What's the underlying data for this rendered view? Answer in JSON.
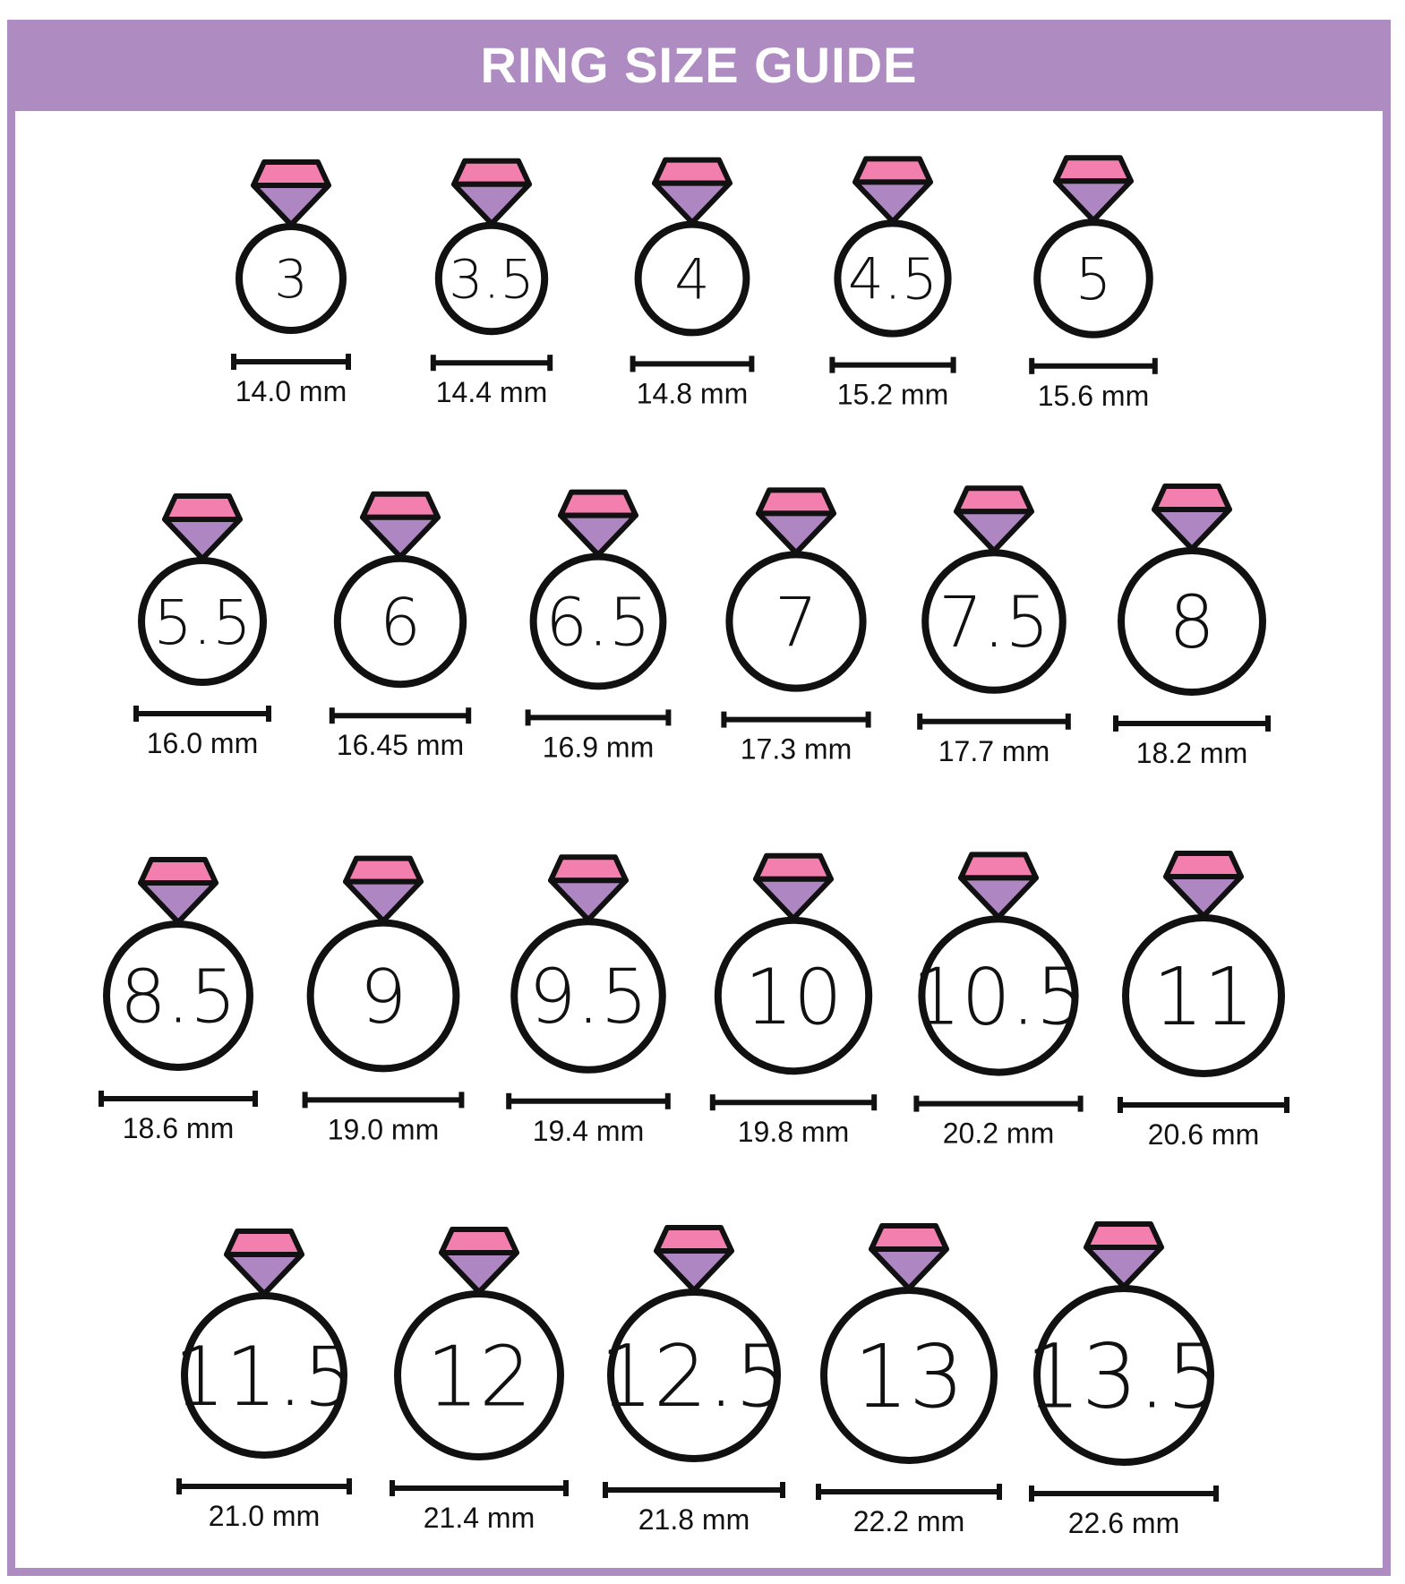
{
  "header": {
    "title": "RING SIZE GUIDE"
  },
  "colors": {
    "accent": "#ae8bc1",
    "gem_top": "#f27fae",
    "gem_bottom": "#ae86c2",
    "outline": "#111111"
  },
  "rings": [
    [
      {
        "size": "3",
        "mm": "14.0 mm"
      },
      {
        "size": "3.5",
        "mm": "14.4 mm"
      },
      {
        "size": "4",
        "mm": "14.8 mm"
      },
      {
        "size": "4.5",
        "mm": "15.2 mm"
      },
      {
        "size": "5",
        "mm": "15.6 mm"
      }
    ],
    [
      {
        "size": "5.5",
        "mm": "16.0 mm"
      },
      {
        "size": "6",
        "mm": "16.45 mm"
      },
      {
        "size": "6.5",
        "mm": "16.9 mm"
      },
      {
        "size": "7",
        "mm": "17.3 mm"
      },
      {
        "size": "7.5",
        "mm": "17.7 mm"
      },
      {
        "size": "8",
        "mm": "18.2 mm"
      }
    ],
    [
      {
        "size": "8.5",
        "mm": "18.6 mm"
      },
      {
        "size": "9",
        "mm": "19.0 mm"
      },
      {
        "size": "9.5",
        "mm": "19.4 mm"
      },
      {
        "size": "10",
        "mm": "19.8 mm"
      },
      {
        "size": "10.5",
        "mm": "20.2 mm"
      },
      {
        "size": "11",
        "mm": "20.6 mm"
      }
    ],
    [
      {
        "size": "11.5",
        "mm": "21.0 mm"
      },
      {
        "size": "12",
        "mm": "21.4 mm"
      },
      {
        "size": "12.5",
        "mm": "21.8 mm"
      },
      {
        "size": "13",
        "mm": "22.2 mm"
      },
      {
        "size": "13.5",
        "mm": "22.6 mm"
      }
    ]
  ]
}
